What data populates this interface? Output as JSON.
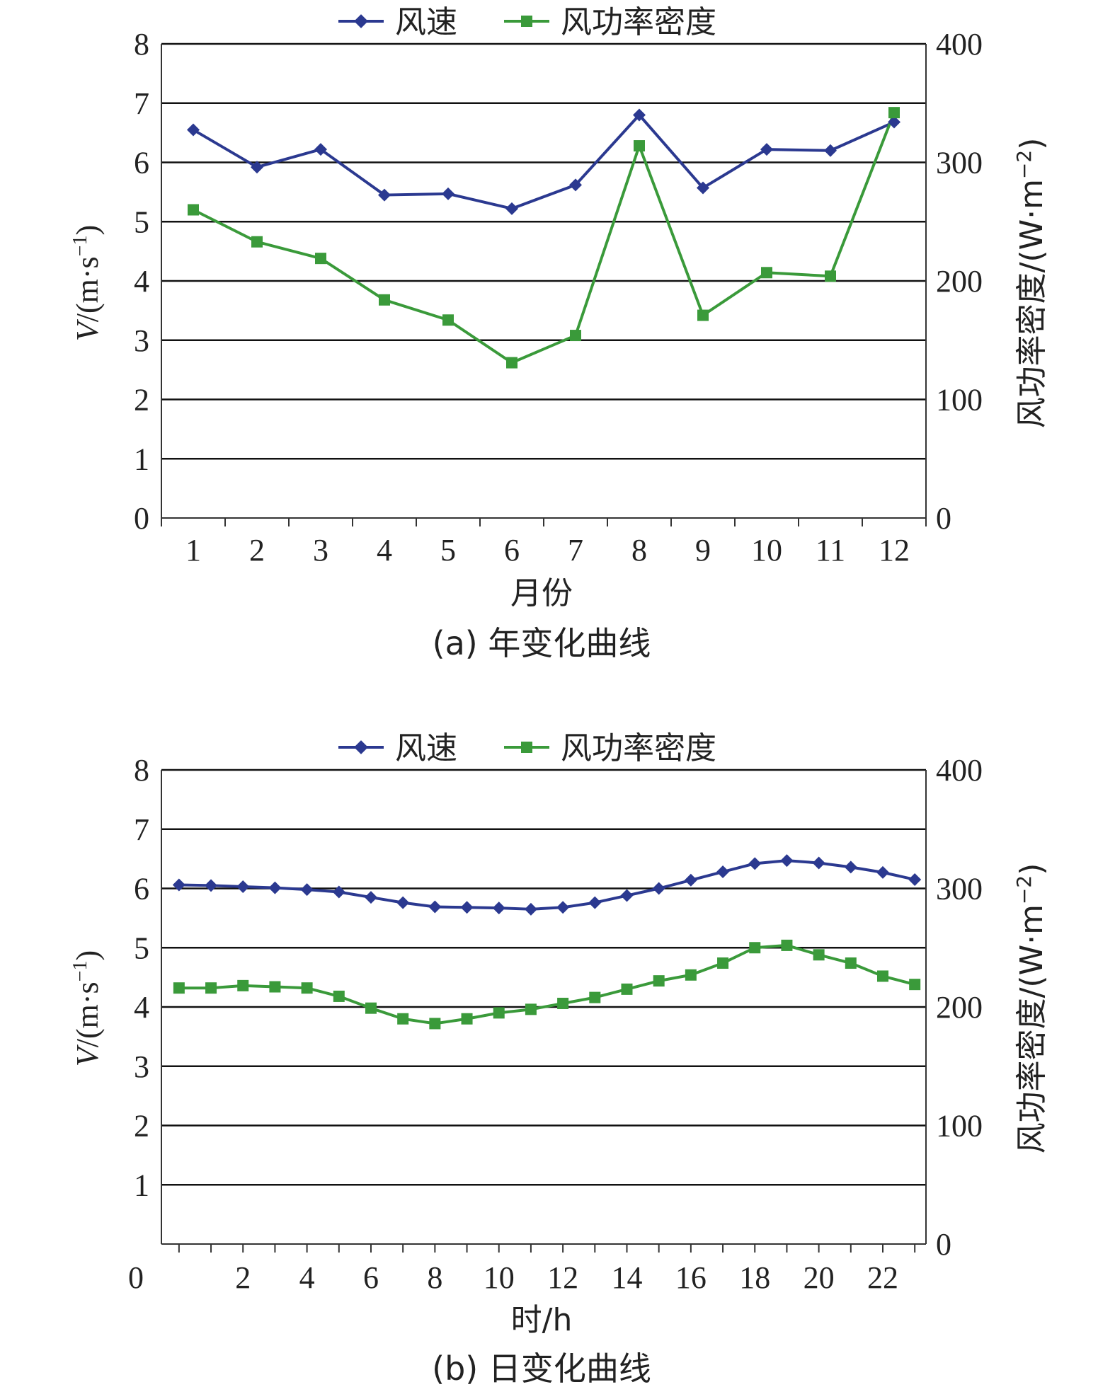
{
  "colors": {
    "wind_speed": "#2b3990",
    "power_density": "#3a9a3a",
    "grid": "#111111",
    "axis": "#333333"
  },
  "chart_data": [
    {
      "type": "line",
      "caption": "(a) 年变化曲线",
      "xlabel": "月份",
      "ylabel_var": "V",
      "ylabel_unit": "/(m·s",
      "ylabel_sup": "−1",
      "ylabel_tail": ")",
      "y2label_main": "风功率密度/(W·m",
      "y2label_sup": "−2",
      "y2label_tail": ")",
      "x": [
        1,
        2,
        3,
        4,
        5,
        6,
        7,
        8,
        9,
        10,
        11,
        12
      ],
      "x_tick_labels": [
        "1",
        "2",
        "3",
        "4",
        "5",
        "6",
        "7",
        "8",
        "9",
        "10",
        "11",
        "12"
      ],
      "ylim": [
        0,
        8
      ],
      "y_ticks": [
        "0",
        "1",
        "2",
        "3",
        "4",
        "5",
        "6",
        "7",
        "8"
      ],
      "y2lim": [
        0,
        400
      ],
      "y2_ticks": [
        "0",
        "100",
        "200",
        "300",
        "400"
      ],
      "grid": true,
      "legend_position": "top-center",
      "series": [
        {
          "name": "风速",
          "axis": "left",
          "marker": "diamond",
          "values": [
            6.55,
            5.92,
            6.22,
            5.45,
            5.47,
            5.22,
            5.62,
            6.8,
            5.57,
            6.22,
            6.2,
            6.68
          ]
        },
        {
          "name": "风功率密度",
          "axis": "right",
          "marker": "square",
          "values": [
            260,
            233,
            219,
            184,
            167,
            131,
            154,
            314,
            171,
            207,
            204,
            342
          ]
        }
      ]
    },
    {
      "type": "line",
      "caption": "(b) 日变化曲线",
      "xlabel": "时/h",
      "ylabel_var": "V",
      "ylabel_unit": "/(m·s",
      "ylabel_sup": "−1",
      "ylabel_tail": ")",
      "y2label_main": "风功率密度/(W·m",
      "y2label_sup": "−2",
      "y2label_tail": ")",
      "x": [
        0,
        1,
        2,
        3,
        4,
        5,
        6,
        7,
        8,
        9,
        10,
        11,
        12,
        13,
        14,
        15,
        16,
        17,
        18,
        19,
        20,
        21,
        22,
        23
      ],
      "x_tick_labels": [
        "0",
        "2",
        "4",
        "6",
        "8",
        "10",
        "12",
        "14",
        "16",
        "18",
        "20",
        "22"
      ],
      "ylim": [
        0,
        8
      ],
      "y_ticks": [
        "1",
        "2",
        "3",
        "4",
        "5",
        "6",
        "7",
        "8"
      ],
      "y_zero_label": "0",
      "y2lim": [
        0,
        400
      ],
      "y2_ticks": [
        "0",
        "100",
        "200",
        "300",
        "400"
      ],
      "grid": true,
      "legend_position": "top-center",
      "series": [
        {
          "name": "风速",
          "axis": "left",
          "marker": "diamond",
          "values": [
            6.06,
            6.05,
            6.03,
            6.01,
            5.98,
            5.94,
            5.85,
            5.76,
            5.69,
            5.68,
            5.67,
            5.65,
            5.68,
            5.76,
            5.88,
            6.0,
            6.14,
            6.28,
            6.42,
            6.47,
            6.43,
            6.36,
            6.27,
            6.15
          ]
        },
        {
          "name": "风功率密度",
          "axis": "right",
          "marker": "square",
          "values": [
            216,
            216,
            218,
            217,
            216,
            209,
            199,
            190,
            186,
            190,
            195,
            198,
            203,
            208,
            215,
            222,
            227,
            237,
            250,
            252,
            244,
            237,
            226,
            219
          ]
        }
      ]
    }
  ]
}
